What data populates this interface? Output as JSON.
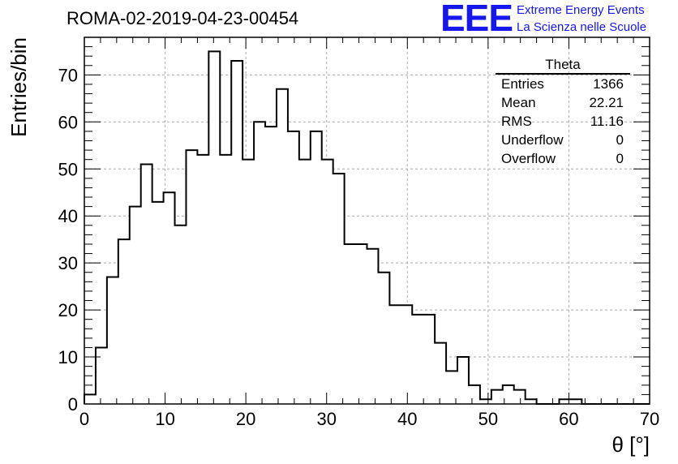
{
  "header": {
    "run_title": "ROMA-02-2019-04-23-00454",
    "logo_text": "EEE",
    "logo_line1": "Extreme Energy Events",
    "logo_line2": "La Scienza nelle Scuole"
  },
  "stats": {
    "title": "Theta",
    "rows": [
      {
        "label": "Entries",
        "value": "1366"
      },
      {
        "label": "Mean",
        "value": "22.21"
      },
      {
        "label": "RMS",
        "value": "11.16"
      },
      {
        "label": "Underflow",
        "value": "0"
      },
      {
        "label": "Overflow",
        "value": "0"
      }
    ]
  },
  "colors": {
    "line": "#000000",
    "grid": "#aaaaaa",
    "logo": "#1616ee"
  },
  "chart_data": {
    "type": "bar",
    "histogram": true,
    "bin_width": 1.4,
    "x_start": 0,
    "values": [
      2,
      12,
      27,
      35,
      42,
      51,
      43,
      45,
      38,
      54,
      53,
      75,
      53,
      73,
      52,
      60,
      59,
      67,
      58,
      52,
      58,
      52,
      49,
      34,
      34,
      33,
      28,
      21,
      21,
      19,
      19,
      13,
      7,
      10,
      4,
      1,
      3,
      4,
      3,
      1,
      0,
      0,
      1,
      1,
      0,
      0,
      0,
      0,
      0,
      0
    ],
    "xlabel": "θ [°]",
    "ylabel": "Entries/bin",
    "xlim": [
      0,
      70
    ],
    "ylim": [
      0,
      78
    ],
    "xticks": [
      0,
      10,
      20,
      30,
      40,
      50,
      60,
      70
    ],
    "yticks": [
      0,
      10,
      20,
      30,
      40,
      50,
      60,
      70
    ],
    "grid": true,
    "grid_style": "dashed"
  }
}
